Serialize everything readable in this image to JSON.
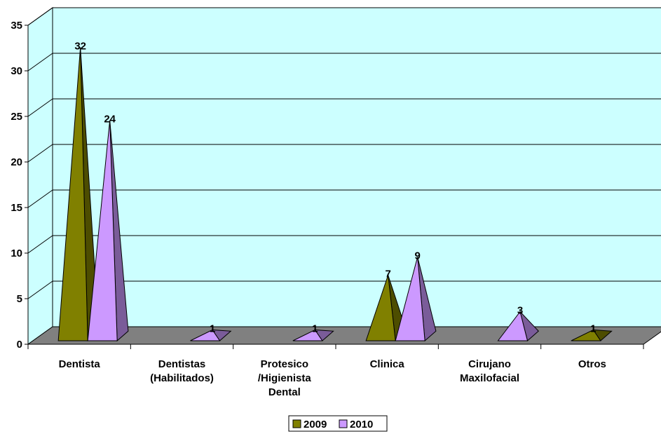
{
  "chart_data": {
    "type": "bar",
    "style": "3d-pyramid",
    "categories": [
      [
        "Dentista"
      ],
      [
        "Dentistas",
        "(Habilitados)"
      ],
      [
        "Protesico",
        "/Higienista",
        "Dental"
      ],
      [
        "Clinica"
      ],
      [
        "Cirujano",
        "Maxilofacial"
      ],
      [
        "Otros"
      ]
    ],
    "series": [
      {
        "name": "2009",
        "values": [
          32,
          null,
          null,
          7,
          null,
          1
        ],
        "color": "#808000",
        "shade": "#4d4d00"
      },
      {
        "name": "2010",
        "values": [
          24,
          1,
          1,
          9,
          3,
          null
        ],
        "color": "#cc99ff",
        "shade": "#7a5c99"
      }
    ],
    "ylim": [
      0,
      35
    ],
    "yticks": [
      0,
      5,
      10,
      15,
      20,
      25,
      30,
      35
    ],
    "grid": true,
    "legend_position": "bottom",
    "wall_color": "#ccffff",
    "floor_color": "#808080"
  }
}
